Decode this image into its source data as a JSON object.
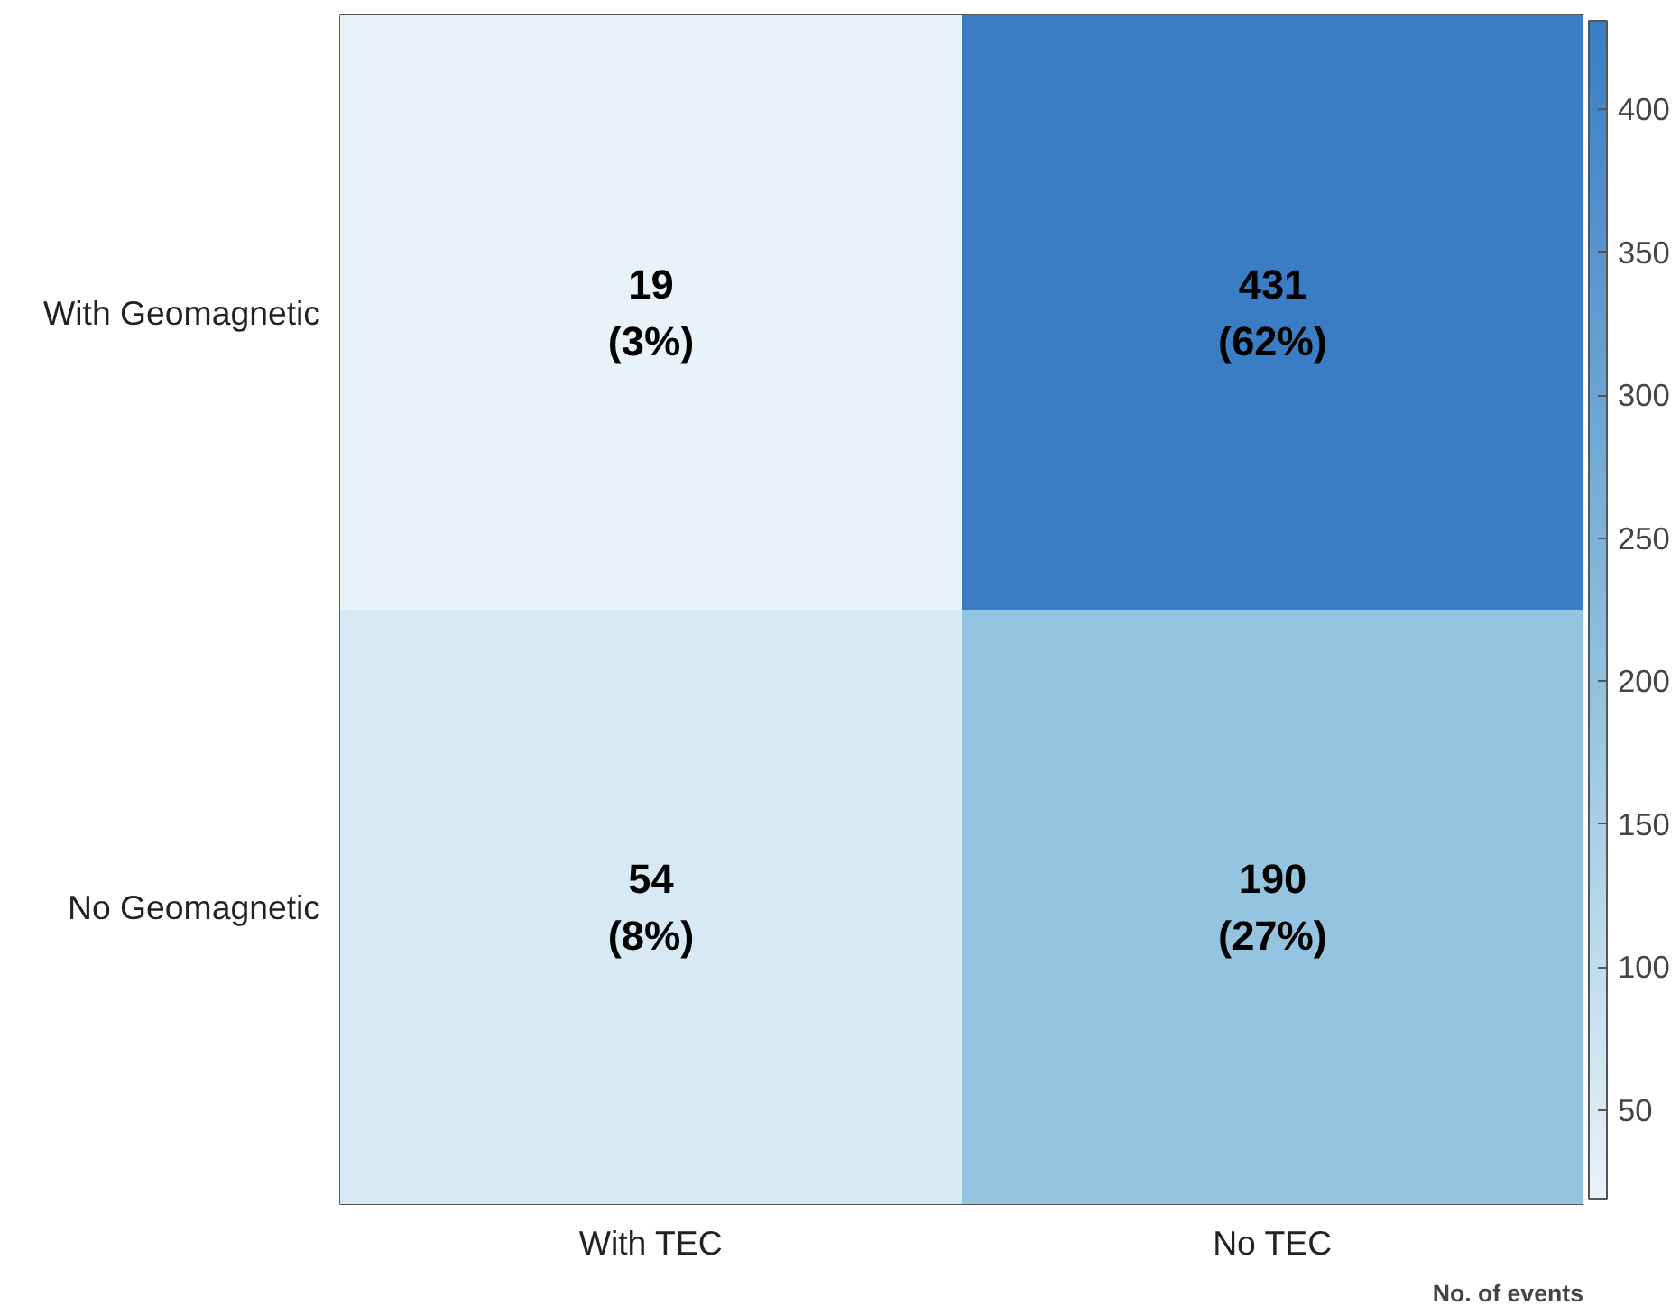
{
  "chart_data": {
    "type": "heatmap",
    "categories": [
      "With TEC",
      "No TEC"
    ],
    "y_categories": [
      "With Geomagnetic",
      "No Geomagnetic"
    ],
    "cells": [
      [
        19,
        431
      ],
      [
        54,
        190
      ]
    ],
    "cell_labels": [
      [
        "19\n(3%)",
        "431\n(62%)"
      ],
      [
        "54\n(8%)",
        "190\n(27%)"
      ]
    ],
    "clim": [
      19,
      431
    ],
    "cticks": [
      50,
      100,
      150,
      200,
      250,
      300,
      350,
      400
    ],
    "clabel": "No. of events"
  }
}
